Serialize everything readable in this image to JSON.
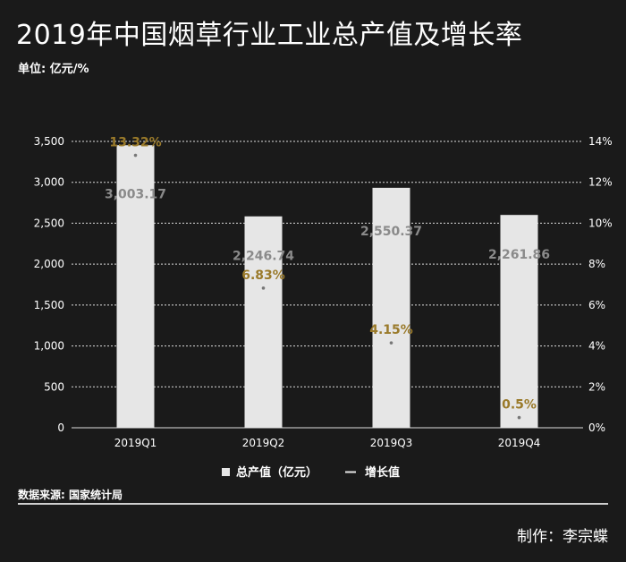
{
  "title": "2019年中国烟草行业工业总产值及增长率",
  "unit": "单位: 亿元/%",
  "source": "数据来源: 国家统计局",
  "credit": "制作：李宗蝶",
  "colors": {
    "background": "#1a1a1a",
    "bar": "#e6e6e6",
    "bar_label": "#8a8a8a",
    "growth_label": "#9a7a2a",
    "growth_dot": "#777777",
    "grid": "#ffffff",
    "text": "#ffffff"
  },
  "chart_data": {
    "type": "bar",
    "categories": [
      "2019Q1",
      "2019Q2",
      "2019Q3",
      "2019Q4"
    ],
    "series": [
      {
        "name": "总产值（亿元）",
        "type": "bar",
        "axis": "left",
        "values": [
          3003.17,
          2246.74,
          2550.37,
          2261.86
        ],
        "labels": [
          "3,003.17",
          "2,246.74",
          "2,550.37",
          "2,261.86"
        ]
      },
      {
        "name": "增长值",
        "type": "line",
        "axis": "right",
        "values": [
          13.32,
          6.83,
          4.15,
          0.5
        ],
        "labels": [
          "13.32%",
          "6.83%",
          "4.15%",
          "0.5%"
        ]
      }
    ],
    "left_axis": {
      "ylim": [
        0,
        3500
      ],
      "ticks": [
        0,
        500,
        1000,
        1500,
        2000,
        2500,
        3000,
        3500
      ],
      "tick_labels": [
        "0",
        "500",
        "1,000",
        "1,500",
        "2,000",
        "2,500",
        "3,000",
        "3,500"
      ]
    },
    "right_axis": {
      "ylim": [
        0,
        14
      ],
      "ticks": [
        0,
        2,
        4,
        6,
        8,
        10,
        12,
        14
      ],
      "tick_labels": [
        "0%",
        "2%",
        "4%",
        "6%",
        "8%",
        "10%",
        "12%",
        "14%"
      ]
    },
    "grid": true,
    "legend_position": "bottom-center"
  }
}
